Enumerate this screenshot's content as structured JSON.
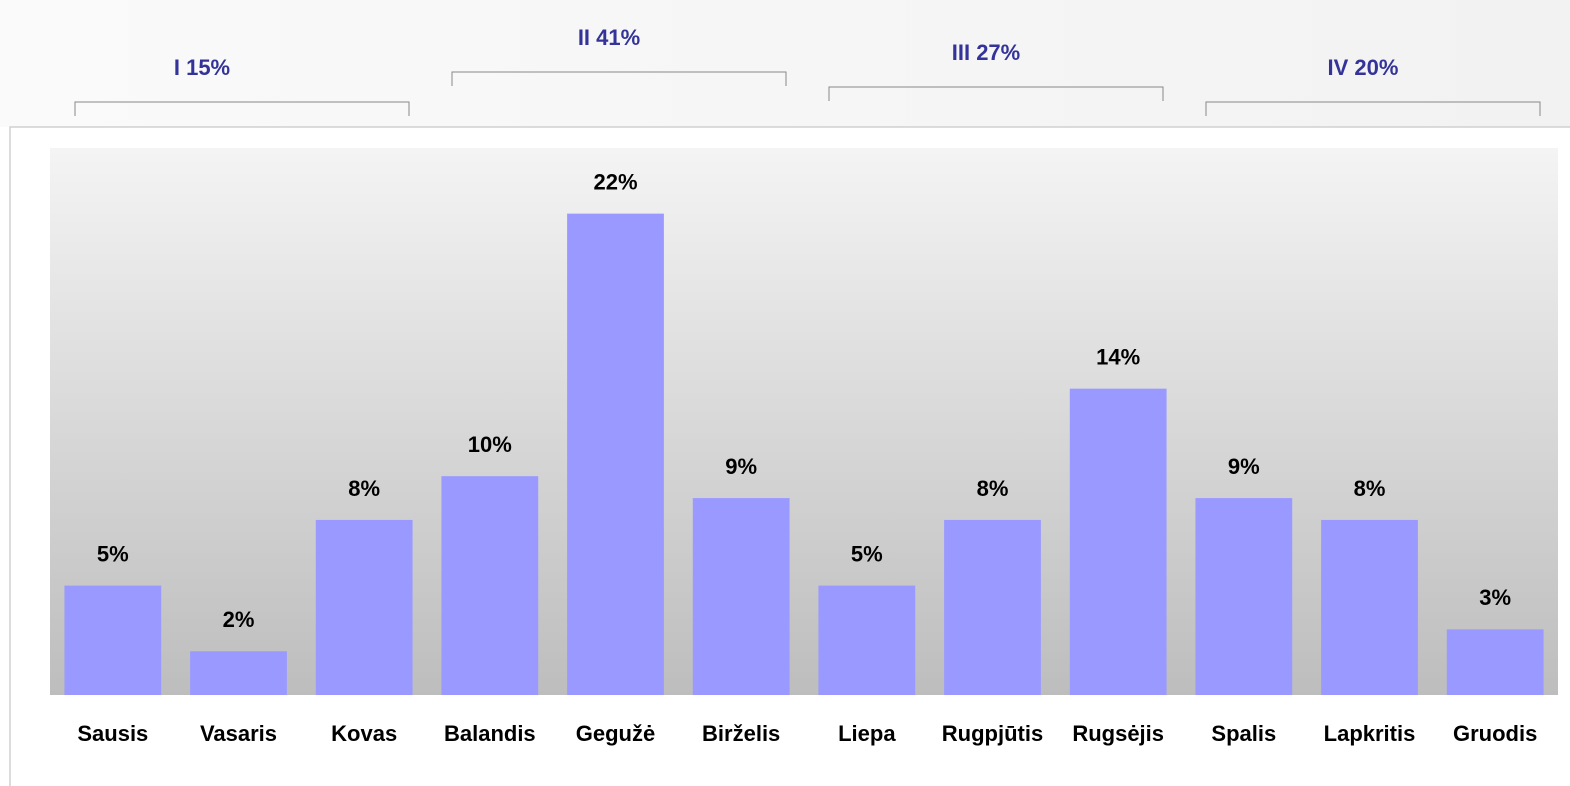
{
  "chart_data": {
    "type": "bar",
    "categories": [
      "Sausis",
      "Vasaris",
      "Kovas",
      "Balandis",
      "Gegužė",
      "Birželis",
      "Liepa",
      "Rugpjūtis",
      "Rugsėjis",
      "Spalis",
      "Lapkritis",
      "Gruodis"
    ],
    "values": [
      5,
      2,
      8,
      10,
      22,
      9,
      5,
      8,
      14,
      9,
      8,
      3
    ],
    "value_labels": [
      "5%",
      "2%",
      "8%",
      "10%",
      "22%",
      "9%",
      "5%",
      "8%",
      "14%",
      "9%",
      "8%",
      "3%"
    ],
    "color": "#9999ff",
    "ylim": [
      0,
      25
    ],
    "annotations": [
      "I 15%",
      "II 41%",
      "III 27%",
      "IV 20%"
    ]
  }
}
